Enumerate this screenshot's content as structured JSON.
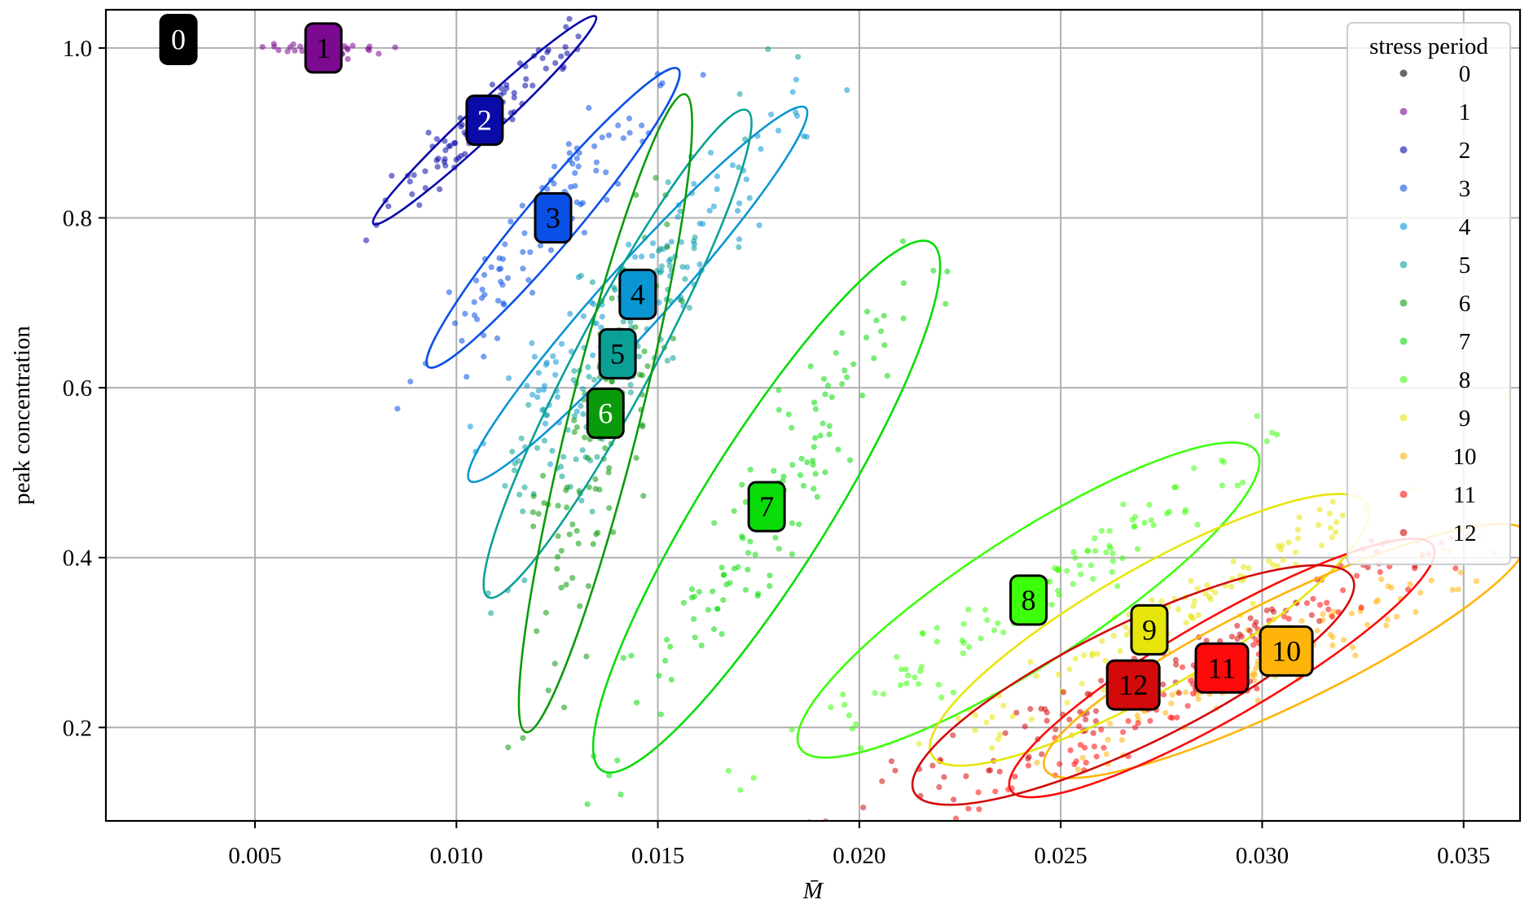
{
  "chart_data": {
    "type": "scatter",
    "title": "",
    "xlabel": "M̄",
    "ylabel": "peak concentration",
    "xlim": [
      0.0013,
      0.0364
    ],
    "ylim": [
      0.09,
      1.045
    ],
    "xticks": [
      0.005,
      0.01,
      0.015,
      0.02,
      0.025,
      0.03,
      0.035
    ],
    "xtick_labels": [
      "0.005",
      "0.010",
      "0.015",
      "0.020",
      "0.025",
      "0.030",
      "0.035"
    ],
    "yticks": [
      0.2,
      0.4,
      0.6,
      0.8,
      1.0
    ],
    "ytick_labels": [
      "0.2",
      "0.4",
      "0.6",
      "0.8",
      "1.0"
    ],
    "grid": true,
    "legend": {
      "title": "stress period",
      "position": "top-right"
    },
    "series": [
      {
        "name": "0",
        "color": "#000000",
        "label_color": "#ffffff",
        "center": [
          0.0031,
          1.01
        ],
        "ellipse": null,
        "n_points": 0
      },
      {
        "name": "1",
        "color": "#7b0a91",
        "label_color": "#000000",
        "center": [
          0.0067,
          1.0
        ],
        "ellipse": null,
        "n_points": 40,
        "spread": [
          0.0007,
          0.0035
        ]
      },
      {
        "name": "2",
        "color": "#0a0aa8",
        "label_color": "#ffffff",
        "center": [
          0.0107,
          0.915
        ],
        "ellipse": {
          "major": 0.215,
          "minor": 0.022,
          "angle": -43
        },
        "n_points": 90,
        "spread": [
          0.0022,
          0.05
        ]
      },
      {
        "name": "3",
        "color": "#0a50e6",
        "label_color": "#000000",
        "center": [
          0.0124,
          0.8
        ],
        "ellipse": {
          "major": 0.275,
          "minor": 0.037,
          "angle": -50
        },
        "n_points": 100,
        "spread": [
          0.0026,
          0.08
        ]
      },
      {
        "name": "4",
        "color": "#0a96d2",
        "label_color": "#000000",
        "center": [
          0.0145,
          0.71
        ],
        "ellipse": {
          "major": 0.355,
          "minor": 0.045,
          "angle": -48
        },
        "n_points": 110,
        "spread": [
          0.0032,
          0.1
        ]
      },
      {
        "name": "5",
        "color": "#0aa096",
        "label_color": "#000000",
        "center": [
          0.014,
          0.64
        ],
        "ellipse": {
          "major": 0.39,
          "minor": 0.055,
          "angle": -62
        },
        "n_points": 110,
        "spread": [
          0.003,
          0.12
        ]
      },
      {
        "name": "6",
        "color": "#0a9b0a",
        "label_color": "#ffffff",
        "center": [
          0.0137,
          0.57
        ],
        "ellipse": {
          "major": 0.465,
          "minor": 0.05,
          "angle": -76
        },
        "n_points": 120,
        "spread": [
          0.002,
          0.14
        ]
      },
      {
        "name": "7",
        "color": "#0adc0a",
        "label_color": "#000000",
        "center": [
          0.0177,
          0.46
        ],
        "ellipse": {
          "major": 0.44,
          "minor": 0.09,
          "angle": -58
        },
        "n_points": 120,
        "spread": [
          0.004,
          0.12
        ]
      },
      {
        "name": "8",
        "color": "#3cff0a",
        "label_color": "#000000",
        "center": [
          0.0242,
          0.35
        ],
        "ellipse": {
          "major": 0.385,
          "minor": 0.09,
          "angle": -33
        },
        "n_points": 110,
        "spread": [
          0.0045,
          0.08
        ]
      },
      {
        "name": "9",
        "color": "#e6e60a",
        "label_color": "#000000",
        "center": [
          0.0272,
          0.315
        ],
        "ellipse": {
          "major": 0.355,
          "minor": 0.085,
          "angle": -30
        },
        "n_points": 110,
        "spread": [
          0.0042,
          0.07
        ]
      },
      {
        "name": "10",
        "color": "#ffb40a",
        "label_color": "#000000",
        "center": [
          0.0306,
          0.29
        ],
        "ellipse": {
          "major": 0.38,
          "minor": 0.075,
          "angle": -26
        },
        "n_points": 110,
        "spread": [
          0.004,
          0.07
        ]
      },
      {
        "name": "11",
        "color": "#ff0a0a",
        "label_color": "#000000",
        "center": [
          0.029,
          0.27
        ],
        "ellipse": {
          "major": 0.345,
          "minor": 0.07,
          "angle": -30
        },
        "n_points": 110,
        "spread": [
          0.0042,
          0.06
        ]
      },
      {
        "name": "12",
        "color": "#d20a0a",
        "label_color": "#000000",
        "center": [
          0.0268,
          0.25
        ],
        "ellipse": {
          "major": 0.345,
          "minor": 0.085,
          "angle": -26
        },
        "n_points": 110,
        "spread": [
          0.0045,
          0.07
        ]
      }
    ]
  }
}
